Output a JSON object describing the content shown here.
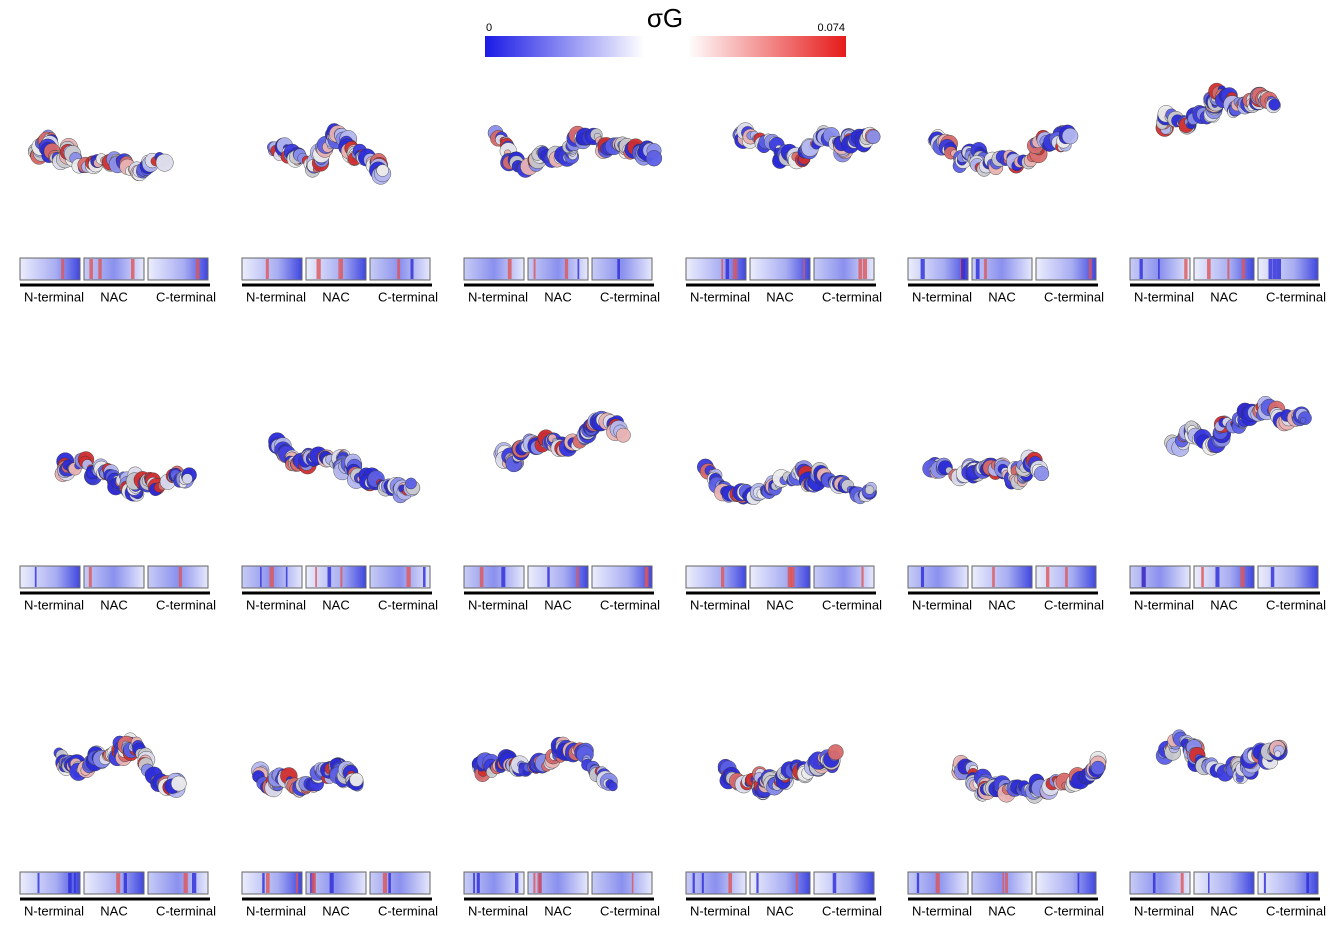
{
  "colorbar": {
    "title": "σG",
    "min": 0,
    "max": 0.074
  },
  "panels": [
    {
      "labels": [
        "N-terminal",
        "NAC",
        "C-terminal"
      ]
    },
    {
      "labels": [
        "N-terminal",
        "NAC",
        "C-terminal"
      ]
    },
    {
      "labels": [
        "N-terminal",
        "NAC",
        "C-terminal"
      ]
    },
    {
      "labels": [
        "N-terminal",
        "NAC",
        "C-terminal"
      ]
    },
    {
      "labels": [
        "N-terminal",
        "NAC",
        "C-terminal"
      ]
    },
    {
      "labels": [
        "N-terminal",
        "NAC",
        "C-terminal"
      ]
    },
    {
      "labels": [
        "N-terminal",
        "NAC",
        "C-terminal"
      ]
    },
    {
      "labels": [
        "N-terminal",
        "NAC",
        "C-terminal"
      ]
    },
    {
      "labels": [
        "N-terminal",
        "NAC",
        "C-terminal"
      ]
    },
    {
      "labels": [
        "N-terminal",
        "NAC",
        "C-terminal"
      ]
    },
    {
      "labels": [
        "N-terminal",
        "NAC",
        "C-terminal"
      ]
    },
    {
      "labels": [
        "N-terminal",
        "NAC",
        "C-terminal"
      ]
    },
    {
      "labels": [
        "N-terminal",
        "NAC",
        "C-terminal"
      ]
    },
    {
      "labels": [
        "N-terminal",
        "NAC",
        "C-terminal"
      ]
    },
    {
      "labels": [
        "N-terminal",
        "NAC",
        "C-terminal"
      ]
    },
    {
      "labels": [
        "N-terminal",
        "NAC",
        "C-terminal"
      ]
    },
    {
      "labels": [
        "N-terminal",
        "NAC",
        "C-terminal"
      ]
    },
    {
      "labels": [
        "N-terminal",
        "NAC",
        "C-terminal"
      ]
    }
  ]
}
